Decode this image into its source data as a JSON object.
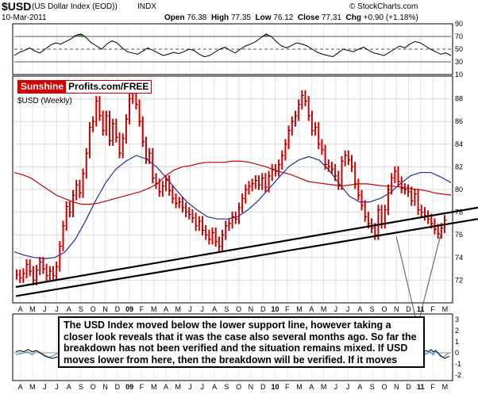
{
  "header": {
    "symbol": "$USD",
    "name": "(US Dollar Index (EOD))",
    "exchange": "INDX",
    "date": "10-Mar-2011",
    "open_label": "Open",
    "open": "76.38",
    "high_label": "High",
    "high": "77.35",
    "low_label": "Low",
    "low": "76.12",
    "close_label": "Close",
    "close": "77.31",
    "chg_label": "Chg",
    "chg": "+0.90 (+1.18%)",
    "copyright": "© StockCharts.com"
  },
  "logo": {
    "part1": "Sunshine",
    "part2": "Profits.com/FREE"
  },
  "annotation": "The USD Index moved below the lower support line, however taking a closer look reveals that it was the case also several months ago. So far the breakdown has not been verified and the situation remains mixed. If USD moves lower from here, then the breakdown will be verified. If it moves higher - it will be invalidated.",
  "colors": {
    "price": "#cc0000",
    "ma_long": "#cc0000",
    "ma_short": "#1f2fa8",
    "rsi_overbought_fill": "#3a7a2a",
    "support_line": "#000000"
  },
  "chart_data": [
    {
      "type": "line",
      "panel": "rsi",
      "title": "",
      "y_ticks": [
        90,
        70,
        50,
        30,
        10
      ],
      "ylim": [
        10,
        90
      ],
      "reference_lines": [
        70,
        50,
        30
      ],
      "values": [
        40,
        45,
        48,
        52,
        47,
        44,
        50,
        56,
        60,
        58,
        62,
        66,
        72,
        74,
        68,
        60,
        55,
        50,
        58,
        63,
        60,
        52,
        46,
        44,
        42,
        47,
        52,
        48,
        44,
        40,
        42,
        45,
        43,
        46,
        50,
        48,
        42,
        38,
        40,
        45,
        50,
        53,
        48,
        44,
        50,
        55,
        58,
        62,
        68,
        74,
        70,
        62,
        55,
        52,
        56,
        60,
        58,
        55,
        50,
        45,
        42,
        40,
        38,
        44,
        50,
        48,
        46,
        50,
        53,
        48,
        44,
        42,
        40,
        45,
        50,
        55,
        52,
        58,
        62,
        60,
        55,
        50,
        46,
        42,
        44,
        40
      ]
    },
    {
      "type": "line",
      "panel": "price",
      "title": "$USD (Weekly)",
      "ylim": [
        70,
        90
      ],
      "y_ticks": [
        72,
        74,
        76,
        78,
        80,
        82,
        84,
        86,
        88
      ],
      "x_ticks": [
        "A",
        "M",
        "J",
        "J",
        "A",
        "S",
        "O",
        "N",
        "D",
        "09",
        "F",
        "M",
        "A",
        "M",
        "J",
        "J",
        "A",
        "S",
        "O",
        "N",
        "D",
        "10",
        "F",
        "M",
        "A",
        "M",
        "J",
        "J",
        "A",
        "S",
        "O",
        "N",
        "D",
        "11",
        "F",
        "M"
      ],
      "series": [
        {
          "name": "",
          "role": "price",
          "values": [
            72.5,
            72.2,
            72.6,
            73.4,
            72.8,
            72.0,
            72.9,
            73.6,
            73.0,
            72.4,
            72.8,
            72.4,
            73.2,
            75.0,
            76.8,
            78.5,
            78.0,
            79.5,
            80.4,
            79.7,
            81.4,
            83.2,
            85.5,
            86.0,
            87.8,
            86.5,
            85.2,
            86.5,
            84.3,
            85.8,
            84.6,
            83.2,
            84.5,
            86.2,
            88.0,
            89.0,
            87.5,
            86.0,
            84.2,
            82.7,
            83.2,
            81.0,
            80.5,
            79.8,
            80.3,
            80.8,
            79.9,
            79.2,
            78.8,
            78.9,
            78.4,
            78.0,
            77.8,
            77.5,
            76.8,
            77.2,
            76.4,
            76.0,
            75.6,
            76.2,
            75.4,
            75.0,
            76.0,
            76.8,
            77.0,
            77.6,
            77.4,
            78.4,
            79.2,
            80.0,
            80.3,
            80.5,
            80.8,
            80.4,
            81.0,
            80.2,
            81.2,
            81.8,
            81.6,
            82.2,
            83.0,
            84.0,
            85.2,
            86.0,
            86.5,
            87.5,
            88.3,
            87.8,
            86.5,
            85.2,
            85.5,
            84.0,
            83.5,
            82.2,
            82.0,
            81.8,
            81.2,
            80.4,
            82.5,
            83.0,
            82.6,
            82.0,
            80.5,
            79.5,
            78.6,
            77.6,
            77.0,
            76.6,
            76.0,
            78.2,
            77.0,
            78.2,
            80.0,
            81.0,
            81.6,
            80.7,
            80.1,
            80.0,
            79.8,
            79.0,
            79.6,
            78.2,
            78.0,
            77.7,
            77.4,
            77.0,
            76.5,
            76.1,
            76.6,
            77.3
          ]
        },
        {
          "name": "",
          "role": "long_moving_average",
          "values": [
            81.5,
            81.3,
            81.0,
            80.5,
            80.0,
            79.5,
            79.2,
            78.9,
            78.7,
            78.7,
            78.8,
            79.0,
            79.2,
            79.4,
            79.6,
            79.8,
            80.1,
            80.5,
            81.2,
            81.7,
            82.0,
            82.1,
            82.3,
            82.4,
            82.4,
            82.4,
            82.5,
            82.5,
            82.4,
            82.2,
            82.0,
            81.7,
            81.5,
            81.3,
            81.0,
            80.7,
            80.6,
            80.5,
            80.4,
            80.3,
            80.4,
            80.5,
            80.5,
            80.4,
            80.3,
            80.3,
            80.2,
            80.1,
            80.0,
            79.9,
            79.7,
            79.6,
            79.5
          ]
        },
        {
          "name": "",
          "role": "short_moving_average",
          "values": [
            74.5,
            74.2,
            74.0,
            73.9,
            74.0,
            74.5,
            75.6,
            77.2,
            79.0,
            80.6,
            81.8,
            82.5,
            83.0,
            82.7,
            82.0,
            81.0,
            79.9,
            78.9,
            78.2,
            77.6,
            77.4,
            77.4,
            77.6,
            78.2,
            79.0,
            80.0,
            81.0,
            82.0,
            82.6,
            82.9,
            82.6,
            81.7,
            80.5,
            79.4,
            78.9,
            78.9,
            79.2,
            79.7,
            80.5,
            81.2,
            81.5,
            81.5,
            81.1,
            80.6
          ]
        }
      ],
      "trendlines": [
        "support-lower",
        "support-upper"
      ]
    },
    {
      "type": "line",
      "panel": "lower",
      "title": "",
      "y_ticks": [
        3,
        2,
        1,
        0,
        -1,
        -2
      ],
      "ylim": [
        -2.5,
        3.5
      ],
      "x_ticks": [
        "A",
        "M",
        "J",
        "J",
        "A",
        "S",
        "O",
        "N",
        "D",
        "09",
        "F",
        "M",
        "A",
        "M",
        "J",
        "J",
        "A",
        "S",
        "O",
        "N",
        "D",
        "10",
        "F",
        "M",
        "A",
        "M",
        "J",
        "J",
        "A",
        "S",
        "O",
        "N",
        "D",
        "11",
        "F",
        "M"
      ],
      "series": [
        {
          "name": "",
          "values": [
            -0.2,
            -0.1,
            0.0,
            0.1,
            -0.2,
            0.2,
            0.0,
            -0.3,
            -0.4,
            -0.3,
            -0.1,
            0.0
          ]
        },
        {
          "name": "",
          "values": [
            0.1,
            0.2,
            0.1,
            0.3,
            0.1,
            0.2,
            0.0,
            -0.2,
            -0.4,
            -0.5,
            -0.4,
            -0.3
          ]
        }
      ]
    }
  ]
}
